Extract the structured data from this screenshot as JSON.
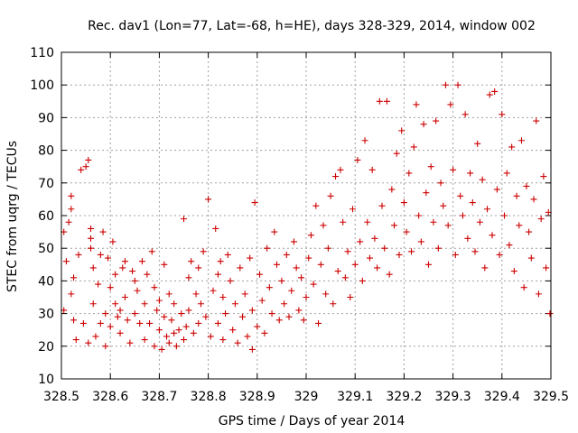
{
  "chart_data": {
    "type": "scatter",
    "title": "Rec. dav1 (Lon=77, Lat=-68, h=HE), days 328-329, 2014, window 002",
    "xlabel": "GPS time / Days of year 2014",
    "ylabel": "STEC from uqrg / TECUs",
    "xlim": [
      328.5,
      329.5
    ],
    "ylim": [
      10,
      110
    ],
    "x_ticks": [
      328.5,
      328.6,
      328.7,
      328.8,
      328.9,
      329.0,
      329.1,
      329.2,
      329.3,
      329.4,
      329.5
    ],
    "x_tick_labels": [
      "328.5",
      "328.6",
      "328.7",
      "328.8",
      "328.9",
      "329",
      "329.1",
      "329.2",
      "329.3",
      "329.4",
      "329.5"
    ],
    "y_ticks": [
      10,
      20,
      30,
      40,
      50,
      60,
      70,
      80,
      90,
      100,
      110
    ],
    "y_tick_labels": [
      "10",
      "20",
      "30",
      "40",
      "50",
      "60",
      "70",
      "80",
      "90",
      "100",
      "110"
    ],
    "grid": true,
    "marker": "plus",
    "color": "#cc0000",
    "series": [
      {
        "points": [
          [
            328.505,
            31
          ],
          [
            328.505,
            55
          ],
          [
            328.51,
            46
          ],
          [
            328.515,
            58
          ],
          [
            328.52,
            62
          ],
          [
            328.52,
            66
          ],
          [
            328.52,
            36
          ],
          [
            328.525,
            28
          ],
          [
            328.525,
            41
          ],
          [
            328.53,
            22
          ],
          [
            328.535,
            48
          ],
          [
            328.54,
            74
          ],
          [
            328.545,
            27
          ],
          [
            328.55,
            75
          ],
          [
            328.555,
            77
          ],
          [
            328.555,
            21
          ],
          [
            328.56,
            56
          ],
          [
            328.56,
            53
          ],
          [
            328.56,
            50
          ],
          [
            328.565,
            33
          ],
          [
            328.565,
            44
          ],
          [
            328.57,
            23
          ],
          [
            328.575,
            39
          ],
          [
            328.58,
            27
          ],
          [
            328.58,
            48
          ],
          [
            328.585,
            55
          ],
          [
            328.59,
            20
          ],
          [
            328.59,
            30
          ],
          [
            328.595,
            47
          ],
          [
            328.6,
            38
          ],
          [
            328.6,
            26
          ],
          [
            328.605,
            52
          ],
          [
            328.61,
            42
          ],
          [
            328.61,
            33
          ],
          [
            328.615,
            29
          ],
          [
            328.62,
            31
          ],
          [
            328.62,
            24
          ],
          [
            328.625,
            44
          ],
          [
            328.63,
            46
          ],
          [
            328.63,
            35
          ],
          [
            328.635,
            28
          ],
          [
            328.64,
            21
          ],
          [
            328.645,
            43
          ],
          [
            328.65,
            40
          ],
          [
            328.65,
            30
          ],
          [
            328.655,
            37
          ],
          [
            328.66,
            27
          ],
          [
            328.665,
            46
          ],
          [
            328.67,
            22
          ],
          [
            328.67,
            33
          ],
          [
            328.675,
            42
          ],
          [
            328.68,
            27
          ],
          [
            328.685,
            49
          ],
          [
            328.69,
            20
          ],
          [
            328.69,
            38
          ],
          [
            328.695,
            31
          ],
          [
            328.7,
            25
          ],
          [
            328.7,
            34
          ],
          [
            328.705,
            19
          ],
          [
            328.71,
            45
          ],
          [
            328.71,
            29
          ],
          [
            328.715,
            23
          ],
          [
            328.72,
            21
          ],
          [
            328.72,
            36
          ],
          [
            328.725,
            28
          ],
          [
            328.73,
            33
          ],
          [
            328.73,
            24
          ],
          [
            328.735,
            20
          ],
          [
            328.74,
            25
          ],
          [
            328.745,
            30
          ],
          [
            328.75,
            59
          ],
          [
            328.75,
            22
          ],
          [
            328.755,
            26
          ],
          [
            328.76,
            41
          ],
          [
            328.76,
            31
          ],
          [
            328.765,
            46
          ],
          [
            328.77,
            24
          ],
          [
            328.775,
            36
          ],
          [
            328.78,
            27
          ],
          [
            328.78,
            44
          ],
          [
            328.785,
            33
          ],
          [
            328.79,
            49
          ],
          [
            328.795,
            29
          ],
          [
            328.8,
            65
          ],
          [
            328.805,
            23
          ],
          [
            328.81,
            37
          ],
          [
            328.815,
            56
          ],
          [
            328.82,
            42
          ],
          [
            328.82,
            27
          ],
          [
            328.825,
            46
          ],
          [
            328.83,
            35
          ],
          [
            328.83,
            22
          ],
          [
            328.835,
            30
          ],
          [
            328.84,
            48
          ],
          [
            328.845,
            40
          ],
          [
            328.85,
            25
          ],
          [
            328.855,
            33
          ],
          [
            328.86,
            21
          ],
          [
            328.865,
            44
          ],
          [
            328.87,
            29
          ],
          [
            328.875,
            36
          ],
          [
            328.88,
            23
          ],
          [
            328.885,
            47
          ],
          [
            328.89,
            31
          ],
          [
            328.89,
            19
          ],
          [
            328.895,
            64
          ],
          [
            328.9,
            26
          ],
          [
            328.905,
            42
          ],
          [
            328.91,
            34
          ],
          [
            328.915,
            24
          ],
          [
            328.92,
            50
          ],
          [
            328.925,
            38
          ],
          [
            328.93,
            30
          ],
          [
            328.935,
            55
          ],
          [
            328.94,
            45
          ],
          [
            328.945,
            28
          ],
          [
            328.95,
            40
          ],
          [
            328.955,
            33
          ],
          [
            328.96,
            48
          ],
          [
            328.965,
            29
          ],
          [
            328.97,
            37
          ],
          [
            328.975,
            52
          ],
          [
            328.98,
            44
          ],
          [
            328.985,
            31
          ],
          [
            328.99,
            41
          ],
          [
            328.995,
            28
          ],
          [
            329.0,
            35
          ],
          [
            329.005,
            47
          ],
          [
            329.01,
            54
          ],
          [
            329.015,
            39
          ],
          [
            329.02,
            63
          ],
          [
            329.025,
            27
          ],
          [
            329.03,
            45
          ],
          [
            329.035,
            57
          ],
          [
            329.04,
            36
          ],
          [
            329.045,
            50
          ],
          [
            329.05,
            66
          ],
          [
            329.055,
            33
          ],
          [
            329.06,
            72
          ],
          [
            329.065,
            43
          ],
          [
            329.07,
            74
          ],
          [
            329.075,
            58
          ],
          [
            329.08,
            41
          ],
          [
            329.085,
            49
          ],
          [
            329.09,
            35
          ],
          [
            329.095,
            62
          ],
          [
            329.1,
            45
          ],
          [
            329.105,
            77
          ],
          [
            329.11,
            52
          ],
          [
            329.115,
            40
          ],
          [
            329.12,
            83
          ],
          [
            329.125,
            58
          ],
          [
            329.13,
            47
          ],
          [
            329.135,
            74
          ],
          [
            329.14,
            53
          ],
          [
            329.145,
            44
          ],
          [
            329.15,
            95
          ],
          [
            329.155,
            63
          ],
          [
            329.16,
            50
          ],
          [
            329.165,
            95
          ],
          [
            329.17,
            42
          ],
          [
            329.175,
            68
          ],
          [
            329.18,
            57
          ],
          [
            329.185,
            79
          ],
          [
            329.19,
            48
          ],
          [
            329.195,
            86
          ],
          [
            329.2,
            64
          ],
          [
            329.205,
            55
          ],
          [
            329.21,
            73
          ],
          [
            329.215,
            49
          ],
          [
            329.22,
            81
          ],
          [
            329.225,
            94
          ],
          [
            329.23,
            60
          ],
          [
            329.235,
            52
          ],
          [
            329.24,
            88
          ],
          [
            329.245,
            67
          ],
          [
            329.25,
            45
          ],
          [
            329.255,
            75
          ],
          [
            329.26,
            58
          ],
          [
            329.265,
            89
          ],
          [
            329.27,
            50
          ],
          [
            329.275,
            70
          ],
          [
            329.28,
            63
          ],
          [
            329.285,
            100
          ],
          [
            329.29,
            57
          ],
          [
            329.295,
            94
          ],
          [
            329.3,
            74
          ],
          [
            329.305,
            48
          ],
          [
            329.31,
            100
          ],
          [
            329.315,
            66
          ],
          [
            329.32,
            60
          ],
          [
            329.325,
            91
          ],
          [
            329.33,
            53
          ],
          [
            329.335,
            73
          ],
          [
            329.34,
            64
          ],
          [
            329.345,
            49
          ],
          [
            329.35,
            82
          ],
          [
            329.355,
            58
          ],
          [
            329.36,
            71
          ],
          [
            329.365,
            44
          ],
          [
            329.37,
            62
          ],
          [
            329.375,
            97
          ],
          [
            329.38,
            54
          ],
          [
            329.385,
            98
          ],
          [
            329.39,
            68
          ],
          [
            329.395,
            48
          ],
          [
            329.4,
            91
          ],
          [
            329.405,
            60
          ],
          [
            329.41,
            73
          ],
          [
            329.415,
            51
          ],
          [
            329.42,
            81
          ],
          [
            329.425,
            43
          ],
          [
            329.43,
            66
          ],
          [
            329.435,
            57
          ],
          [
            329.44,
            83
          ],
          [
            329.445,
            38
          ],
          [
            329.45,
            69
          ],
          [
            329.455,
            55
          ],
          [
            329.46,
            47
          ],
          [
            329.465,
            65
          ],
          [
            329.47,
            89
          ],
          [
            329.475,
            36
          ],
          [
            329.48,
            59
          ],
          [
            329.485,
            72
          ],
          [
            329.49,
            44
          ],
          [
            329.495,
            61
          ],
          [
            329.498,
            30
          ]
        ]
      }
    ]
  }
}
